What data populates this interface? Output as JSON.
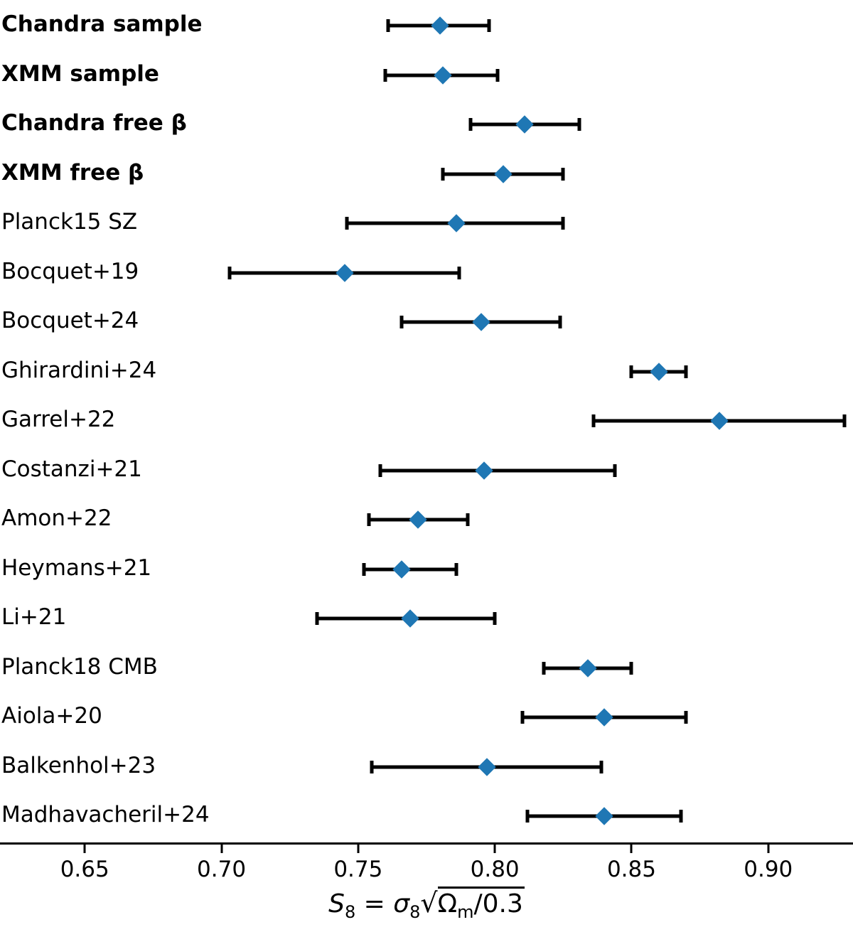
{
  "figure": {
    "background": "#ffffff",
    "marker_color": "#1f77b4",
    "errorbar_color": "#000000",
    "xlabel_parts": {
      "s_var": "S",
      "s_sub": "8",
      "equals": " = ",
      "sigma_var": "σ",
      "sigma_sub": "8",
      "sqrt_sign": "√",
      "radicand_var": "Ω",
      "radicand_sub": "m",
      "radicand_rest": "/0.3"
    }
  },
  "chart_data": {
    "type": "scatter",
    "subtype": "horizontal-errorbar-forest-plot",
    "title": "",
    "xlabel": "S8 = σ8 sqrt(Ωm/0.3)",
    "ylabel": "",
    "xlim": [
      0.619,
      0.931
    ],
    "grid": false,
    "legend": null,
    "marker": "diamond",
    "xticks": [
      0.65,
      0.7,
      0.75,
      0.8,
      0.85,
      0.9
    ],
    "xtick_labels": [
      "0.65",
      "0.70",
      "0.75",
      "0.80",
      "0.85",
      "0.90"
    ],
    "rows": [
      {
        "label": "Chandra sample",
        "bold": true,
        "value": 0.78,
        "err_minus": 0.019,
        "err_plus": 0.018
      },
      {
        "label": "XMM sample",
        "bold": true,
        "value": 0.781,
        "err_minus": 0.021,
        "err_plus": 0.02
      },
      {
        "label": "Chandra free β",
        "bold": true,
        "value": 0.811,
        "err_minus": 0.02,
        "err_plus": 0.02
      },
      {
        "label": "XMM free β",
        "bold": true,
        "value": 0.803,
        "err_minus": 0.022,
        "err_plus": 0.022
      },
      {
        "label": "Planck15 SZ",
        "bold": false,
        "value": 0.786,
        "err_minus": 0.04,
        "err_plus": 0.039
      },
      {
        "label": "Bocquet+19",
        "bold": false,
        "value": 0.745,
        "err_minus": 0.042,
        "err_plus": 0.042
      },
      {
        "label": "Bocquet+24",
        "bold": false,
        "value": 0.795,
        "err_minus": 0.029,
        "err_plus": 0.029
      },
      {
        "label": "Ghirardini+24",
        "bold": false,
        "value": 0.86,
        "err_minus": 0.01,
        "err_plus": 0.01
      },
      {
        "label": "Garrel+22",
        "bold": false,
        "value": 0.882,
        "err_minus": 0.046,
        "err_plus": 0.046
      },
      {
        "label": "Costanzi+21",
        "bold": false,
        "value": 0.796,
        "err_minus": 0.038,
        "err_plus": 0.048
      },
      {
        "label": "Amon+22",
        "bold": false,
        "value": 0.772,
        "err_minus": 0.018,
        "err_plus": 0.018
      },
      {
        "label": "Heymans+21",
        "bold": false,
        "value": 0.766,
        "err_minus": 0.014,
        "err_plus": 0.02
      },
      {
        "label": "Li+21",
        "bold": false,
        "value": 0.769,
        "err_minus": 0.034,
        "err_plus": 0.031
      },
      {
        "label": "Planck18 CMB",
        "bold": false,
        "value": 0.834,
        "err_minus": 0.016,
        "err_plus": 0.016
      },
      {
        "label": "Aiola+20",
        "bold": false,
        "value": 0.84,
        "err_minus": 0.03,
        "err_plus": 0.03
      },
      {
        "label": "Balkenhol+23",
        "bold": false,
        "value": 0.797,
        "err_minus": 0.042,
        "err_plus": 0.042
      },
      {
        "label": "Madhavacheril+24",
        "bold": false,
        "value": 0.84,
        "err_minus": 0.028,
        "err_plus": 0.028
      }
    ]
  }
}
